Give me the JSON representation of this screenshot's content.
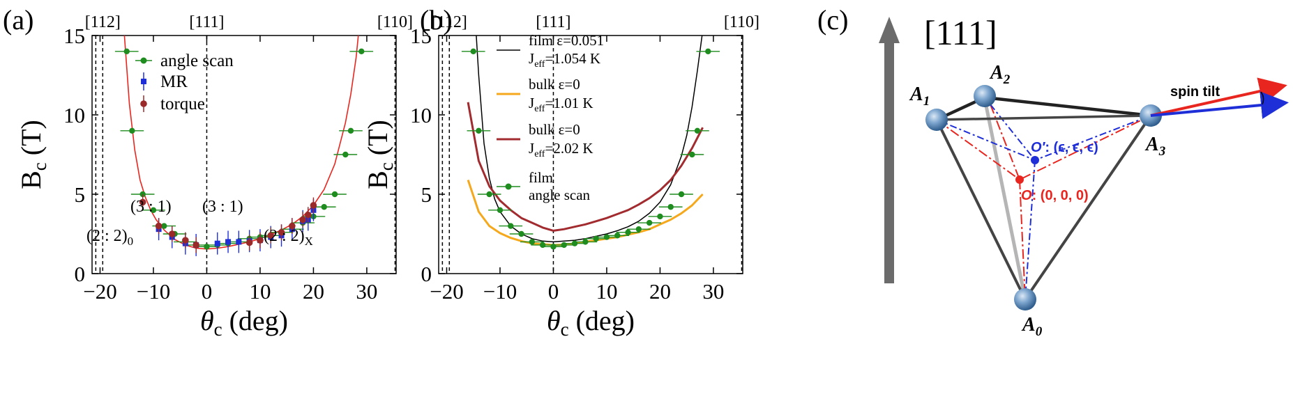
{
  "panel_labels": [
    "(a)",
    "(b)",
    "(c)"
  ],
  "chart_data": [
    {
      "type": "scatter",
      "panel": "(a)",
      "xlabel_main": "θ",
      "xlabel_sub": "c",
      "xlabel_tail": " (deg)",
      "ylabel_main": "B",
      "ylabel_sub": "c",
      "ylabel_tail": " (T)",
      "xlim": [
        -21.5,
        35.5
      ],
      "ylim": [
        0,
        15
      ],
      "xticks": [
        -20,
        -10,
        0,
        10,
        20,
        30
      ],
      "xtick_labels": [
        "−20",
        "−10",
        "0",
        "10",
        "20",
        "30"
      ],
      "yticks": [
        0,
        5,
        10,
        15
      ],
      "ytick_labels": [
        "0",
        "5",
        "10",
        "15"
      ],
      "direction_lines": [
        {
          "x": -19.5,
          "label": "[112]"
        },
        {
          "x": 0,
          "label": "[111]"
        },
        {
          "x": 35.3,
          "label": "[110]"
        }
      ],
      "legend": [
        "angle scan",
        "MR",
        "torque"
      ],
      "series": [
        {
          "name": "fit",
          "kind": "curve",
          "color": "#e8261f",
          "x": [
            -15.5,
            -14.5,
            -13.5,
            -12.5,
            -11.5,
            -10.5,
            -9.5,
            -8,
            -6,
            -4,
            -2,
            0,
            2,
            4,
            6,
            8,
            10,
            12,
            14,
            16,
            18,
            20,
            22,
            24,
            26,
            27,
            28,
            28.5
          ],
          "y": [
            15.3,
            10.7,
            7.8,
            5.9,
            4.8,
            4.0,
            3.4,
            2.75,
            2.15,
            1.8,
            1.6,
            1.55,
            1.6,
            1.7,
            1.85,
            2.0,
            2.2,
            2.45,
            2.75,
            3.1,
            3.6,
            4.3,
            5.3,
            6.9,
            9.5,
            11.3,
            13.6,
            15.3
          ]
        },
        {
          "name": "angle scan",
          "kind": "points",
          "color": "#1e8c1e",
          "x": [
            -15,
            -14,
            -12,
            -10,
            -8,
            -6,
            -4,
            -2,
            0,
            2,
            4,
            6,
            8,
            10,
            12,
            14,
            16,
            18,
            20,
            22,
            24,
            26,
            27,
            29
          ],
          "y": [
            14,
            9,
            5,
            4,
            3,
            2.5,
            2,
            1.8,
            1.7,
            1.8,
            1.9,
            2,
            2.2,
            2.3,
            2.4,
            2.6,
            2.8,
            3.2,
            3.6,
            4.2,
            5,
            7.5,
            9,
            14
          ],
          "xerr": 2.2
        },
        {
          "name": "MR",
          "kind": "points",
          "color": "#1f2fd8",
          "x": [
            -9,
            -6.5,
            -4,
            -2,
            2,
            4,
            6,
            8,
            10,
            12,
            14,
            16,
            18,
            19,
            20
          ],
          "y": [
            2.8,
            2.3,
            1.9,
            1.8,
            1.9,
            2.0,
            2.0,
            2.05,
            2.1,
            2.3,
            2.4,
            2.8,
            3.3,
            3.4,
            4.0
          ],
          "yerr": 0.7
        },
        {
          "name": "torque",
          "kind": "points",
          "color": "#9a2a2a",
          "x": [
            -12,
            -9,
            -6.5,
            -4,
            -2,
            8,
            10,
            12,
            14,
            16,
            18,
            19,
            20
          ],
          "y": [
            4.5,
            3.0,
            2.5,
            2.1,
            1.8,
            1.95,
            2.1,
            2.4,
            2.6,
            3.0,
            3.4,
            3.7,
            4.3
          ],
          "yerr": 0.5
        }
      ],
      "annotations": [
        {
          "text": "(3 : 1)",
          "x": -10.5,
          "y": 4.1
        },
        {
          "text": "(3 : 1)",
          "x": 6.5,
          "y": 4.1
        },
        {
          "text": "(2 : 2)",
          "sub": "0",
          "x": -20,
          "y": 2.2
        },
        {
          "text": "(2 : 2)",
          "sub": "X",
          "x": 20,
          "y": 2.2
        }
      ]
    },
    {
      "type": "line",
      "panel": "(b)",
      "xlabel_main": "θ",
      "xlabel_sub": "c",
      "xlabel_tail": " (deg)",
      "ylabel_main": "B",
      "ylabel_sub": "c",
      "ylabel_tail": " (T)",
      "xlim": [
        -21.5,
        35.5
      ],
      "ylim": [
        0,
        15
      ],
      "xticks": [
        -20,
        -10,
        0,
        10,
        20,
        30
      ],
      "xtick_labels": [
        "−20",
        "−10",
        "0",
        "10",
        "20",
        "30"
      ],
      "yticks": [
        0,
        5,
        10,
        15
      ],
      "ytick_labels": [
        "0",
        "5",
        "10",
        "15"
      ],
      "direction_lines": [
        {
          "x": -19.5,
          "label": "[112]"
        },
        {
          "x": 0,
          "label": "[111]"
        },
        {
          "x": 35.3,
          "label": "[110]"
        }
      ],
      "legend": [
        {
          "line1": "film ε=0.051",
          "line2a": "J",
          "line2sub": "eff",
          "line2b": "=1.054 K",
          "color": "#000000"
        },
        {
          "line1": "bulk ε=0",
          "line2a": "J",
          "line2sub": "eff",
          "line2b": "=1.01 K",
          "color": "#f5a81c"
        },
        {
          "line1": "bulk ε=0",
          "line2a": "J",
          "line2sub": "eff",
          "line2b": "=2.02 K",
          "color": "#a12b2e"
        },
        {
          "line1": "film",
          "line2a": "angle scan",
          "line2sub": "",
          "line2b": "",
          "color": "#1e8c1e"
        }
      ],
      "series": [
        {
          "name": "film ε=0.051",
          "kind": "curve",
          "color": "#000000",
          "width": 1.5,
          "x": [
            -14.5,
            -14,
            -13,
            -12,
            -11,
            -10,
            -8,
            -6,
            -4,
            -2,
            0,
            2,
            4,
            6,
            8,
            10,
            12,
            14,
            16,
            18,
            20,
            22,
            24,
            25,
            26,
            27,
            28
          ],
          "y": [
            15.3,
            12.5,
            8.2,
            6.0,
            4.7,
            3.9,
            3.0,
            2.5,
            2.2,
            2.05,
            2.0,
            2.05,
            2.1,
            2.2,
            2.35,
            2.5,
            2.7,
            2.95,
            3.3,
            3.8,
            4.5,
            5.6,
            7.4,
            8.7,
            10.5,
            12.8,
            15.3
          ]
        },
        {
          "name": "bulk ε=0 J=1.01",
          "kind": "curve",
          "color": "#f5a81c",
          "width": 3,
          "x": [
            -16,
            -14,
            -12,
            -10,
            -8,
            -6,
            -4,
            -2,
            0,
            2,
            4,
            6,
            8,
            10,
            12,
            14,
            16,
            18,
            20,
            22,
            24,
            26,
            28
          ],
          "y": [
            5.9,
            3.9,
            3.0,
            2.55,
            2.25,
            2.05,
            1.9,
            1.85,
            1.8,
            1.82,
            1.9,
            2.0,
            2.1,
            2.2,
            2.3,
            2.45,
            2.6,
            2.8,
            3.1,
            3.4,
            3.8,
            4.3,
            5.0
          ]
        },
        {
          "name": "bulk ε=0 J=2.02",
          "kind": "curve",
          "color": "#a12b2e",
          "width": 3,
          "x": [
            -16,
            -14,
            -12,
            -10,
            -8,
            -6,
            -4,
            -2,
            0,
            2,
            4,
            6,
            8,
            10,
            12,
            14,
            16,
            18,
            20,
            22,
            24,
            26,
            28
          ],
          "y": [
            10.8,
            7.1,
            5.5,
            4.6,
            4.0,
            3.5,
            3.2,
            2.9,
            2.7,
            2.8,
            2.95,
            3.1,
            3.3,
            3.5,
            3.75,
            4.0,
            4.35,
            4.75,
            5.25,
            5.9,
            6.8,
            7.9,
            9.2
          ]
        },
        {
          "name": "film angle scan",
          "kind": "points",
          "color": "#1e8c1e",
          "x": [
            -15,
            -14,
            -12,
            -10,
            -8,
            -6,
            -4,
            -2,
            0,
            2,
            4,
            6,
            8,
            10,
            12,
            14,
            16,
            18,
            20,
            22,
            24,
            26,
            27,
            29
          ],
          "y": [
            14,
            9,
            5,
            4,
            3,
            2.5,
            2,
            1.8,
            1.7,
            1.8,
            1.9,
            2,
            2.2,
            2.3,
            2.4,
            2.6,
            2.8,
            3.2,
            3.6,
            4.2,
            5,
            7.5,
            9,
            14
          ],
          "xerr": 2.2
        }
      ]
    }
  ],
  "diagram": {
    "axis_label": "[111]",
    "spin_tilt": "spin tilt",
    "atoms": [
      {
        "main": "A",
        "sub": "0"
      },
      {
        "main": "A",
        "sub": "1"
      },
      {
        "main": "A",
        "sub": "2"
      },
      {
        "main": "A",
        "sub": "3"
      }
    ],
    "o_prime": {
      "main": "O′",
      "rest": ": (ϵ, ϵ, ϵ)"
    },
    "o_origin": {
      "main": "O",
      "rest": ": (0, 0, 0)"
    },
    "colors": {
      "red": "#e8261f",
      "blue": "#1f2fd8",
      "gray": "#6b6b6b"
    }
  }
}
